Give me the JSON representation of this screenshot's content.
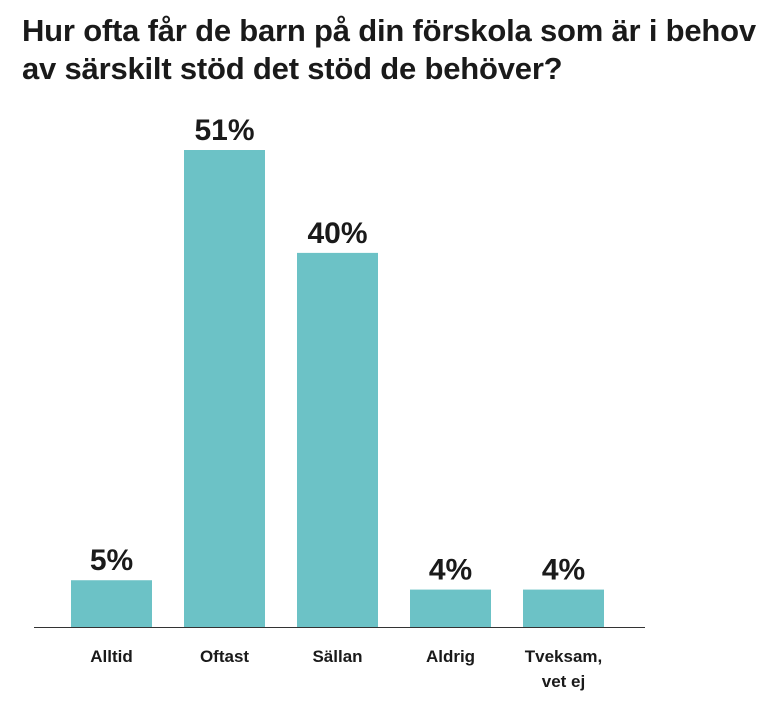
{
  "chart_data": {
    "type": "bar",
    "title": "Hur ofta får de barn på din förskola som är i behov av särskilt stöd det stöd de behöver?",
    "categories": [
      [
        "Alltid"
      ],
      [
        "Oftast"
      ],
      [
        "Sällan"
      ],
      [
        "Aldrig"
      ],
      [
        "Tveksam,",
        "vet ej"
      ]
    ],
    "values": [
      5,
      51,
      40,
      4,
      4
    ],
    "value_labels": [
      "5%",
      "51%",
      "40%",
      "4%",
      "4%"
    ],
    "unit": "%",
    "ylim": [
      0,
      51
    ],
    "grid": false,
    "legend": "none",
    "bar_color": "#6cc2c6",
    "axis_color": "#333333"
  }
}
